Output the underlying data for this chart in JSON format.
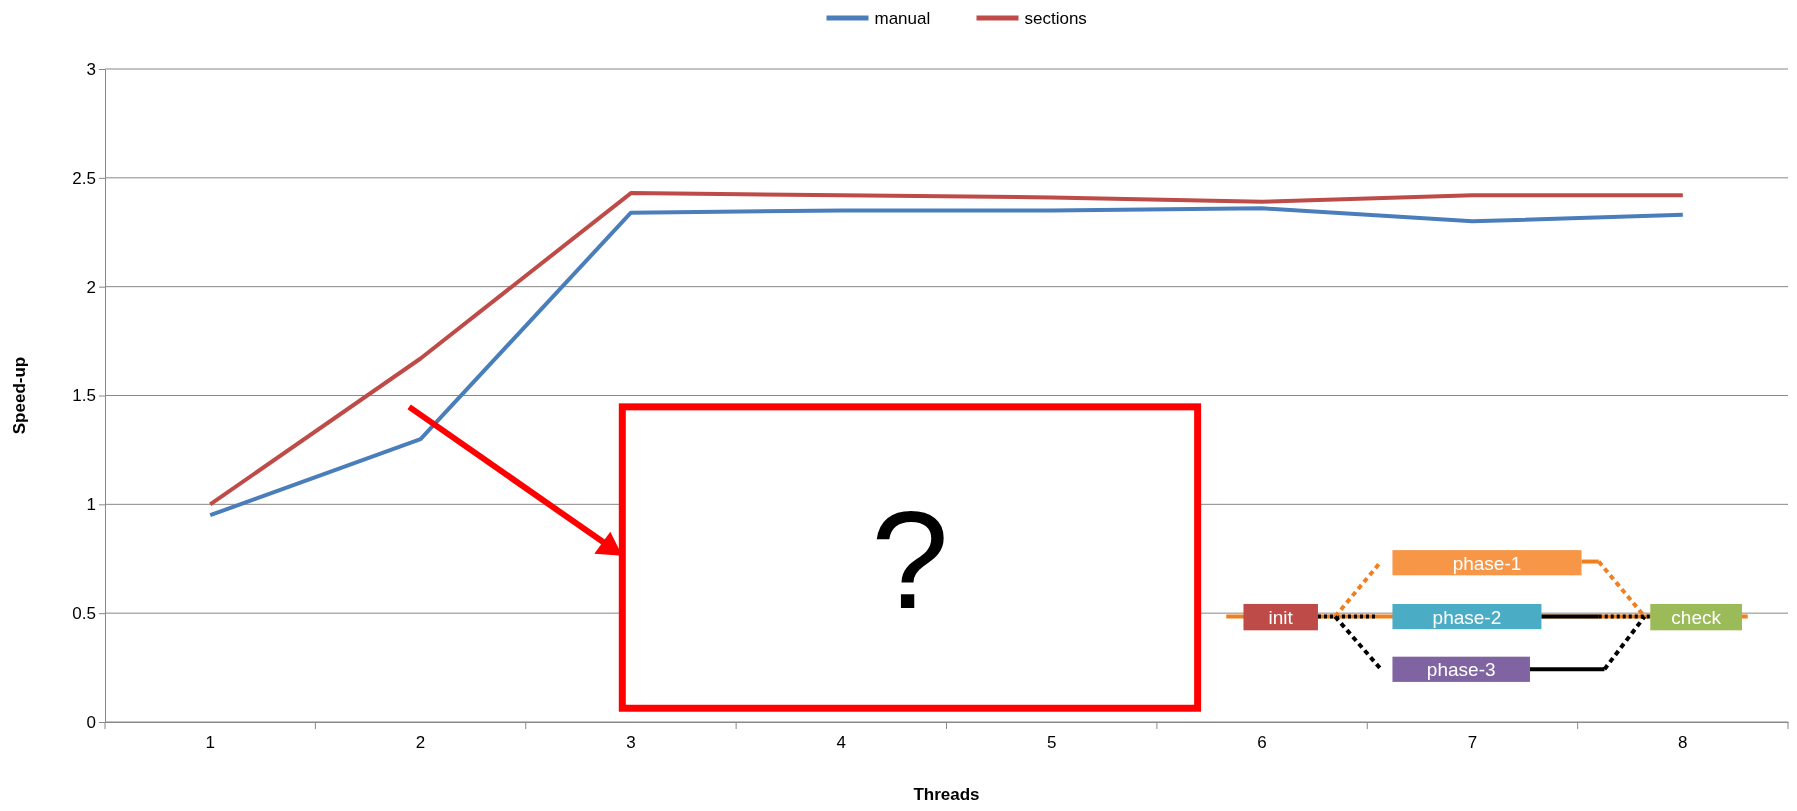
{
  "chart_data": {
    "type": "line",
    "xlabel": "Threads",
    "ylabel": "Speed-up",
    "categories": [
      "1",
      "2",
      "3",
      "4",
      "5",
      "6",
      "7",
      "8"
    ],
    "series": [
      {
        "name": "manual",
        "color": "#4a7ebb",
        "values": [
          0.95,
          1.3,
          2.34,
          2.35,
          2.35,
          2.36,
          2.3,
          2.33
        ]
      },
      {
        "name": "sections",
        "color": "#be4b48",
        "values": [
          1.0,
          1.67,
          2.43,
          2.42,
          2.41,
          2.39,
          2.42,
          2.42
        ]
      }
    ],
    "ylim": [
      0,
      3
    ],
    "yticks": [
      0,
      0.5,
      1,
      1.5,
      2,
      2.5,
      3
    ],
    "grid": "y",
    "legend": "top",
    "marker": "none",
    "line_style": "solid",
    "annotations": [
      "?",
      "init",
      "phase-1",
      "phase-2",
      "phase-3",
      "check"
    ]
  }
}
